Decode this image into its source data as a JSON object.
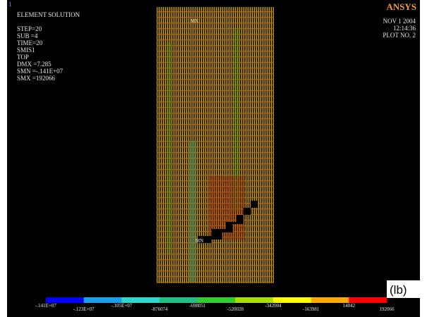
{
  "window_number": "1",
  "header": {
    "title": "ELEMENT SOLUTION",
    "lines": [
      "STEP=20",
      "SUB =4",
      "TIME=20",
      "SMIS1",
      "TOP",
      "DMX =7.285",
      "SMN =-.141E+07",
      "SMX =192066"
    ]
  },
  "logo": "ANSYS",
  "plot_info": {
    "date": "NOV  1 2004",
    "time": "12:14:36",
    "plot_no": "PLOT NO.   2"
  },
  "markers": {
    "max": "MX",
    "min": "MN"
  },
  "legend": {
    "labels": [
      "-.141E+07",
      "-.123E+07",
      "-.105E+07",
      "-876074",
      "-698051",
      "-520028",
      "-342004",
      "-163981",
      "14042",
      "192066"
    ],
    "unit": "(lb)"
  }
}
